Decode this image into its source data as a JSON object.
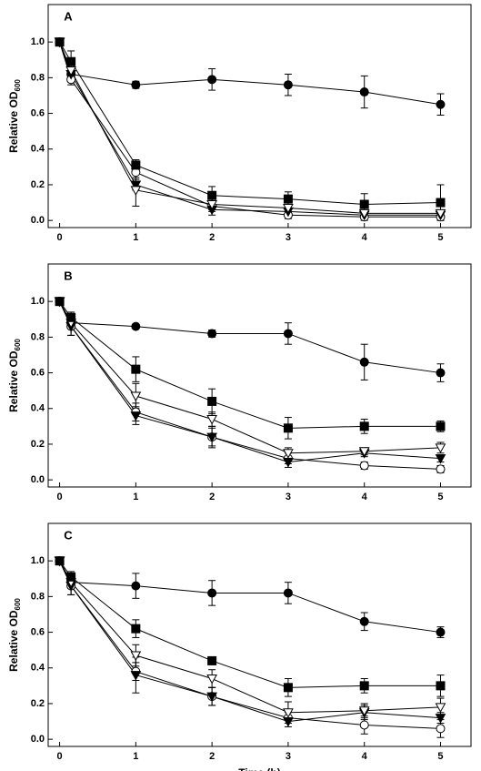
{
  "chart_data": [
    {
      "type": "line",
      "annotation": "A",
      "y_label": "Relative OD",
      "y_label_sub": "600",
      "x": [
        0,
        0.15,
        1,
        2,
        3,
        4,
        5
      ],
      "xlim": [
        -0.15,
        5.4
      ],
      "xticks": [
        0,
        1,
        2,
        3,
        4,
        5
      ],
      "ylim": [
        -0.04,
        1.21
      ],
      "yticks": [
        {
          "value": 0,
          "label": "0.0"
        },
        {
          "value": 0.2,
          "label": "0.2"
        },
        {
          "value": 0.4,
          "label": "0.4"
        },
        {
          "value": 0.6,
          "label": "0.6"
        },
        {
          "value": 0.8,
          "label": "0.8"
        },
        {
          "value": 1,
          "label": "1.0"
        }
      ],
      "series": [
        {
          "marker": "circle",
          "filled": true,
          "color": "#000000",
          "values": [
            1,
            0.82,
            0.76,
            0.79,
            0.76,
            0.72,
            0.65
          ],
          "errors": [
            0,
            0.03,
            0.02,
            0.06,
            0.06,
            0.09,
            0.06
          ]
        },
        {
          "marker": "circle",
          "filled": false,
          "color": "#000000",
          "values": [
            1,
            0.79,
            0.27,
            0.08,
            0.03,
            0.02,
            0.02
          ],
          "errors": [
            0,
            0.03,
            0.03,
            0.03,
            0.02,
            0.02,
            0.02
          ]
        },
        {
          "marker": "triangle",
          "filled": true,
          "color": "#000000",
          "values": [
            1,
            0.82,
            0.2,
            0.06,
            0.05,
            0.03,
            0.03
          ],
          "errors": [
            0,
            0.03,
            0.03,
            0.03,
            0.02,
            0.02,
            0.02
          ]
        },
        {
          "marker": "triangle",
          "filled": false,
          "color": "#000000",
          "values": [
            1,
            0.84,
            0.17,
            0.09,
            0.07,
            0.04,
            0.04
          ],
          "errors": [
            0,
            0.03,
            0.09,
            0.03,
            0.03,
            0.02,
            0.02
          ]
        },
        {
          "marker": "square",
          "filled": true,
          "color": "#000000",
          "values": [
            1,
            0.89,
            0.31,
            0.14,
            0.12,
            0.09,
            0.1
          ],
          "errors": [
            0,
            0.06,
            0.03,
            0.05,
            0.04,
            0.06,
            0.1
          ]
        }
      ]
    },
    {
      "type": "line",
      "annotation": "B",
      "y_label": "Relative OD",
      "y_label_sub": "600",
      "x": [
        0,
        0.15,
        1,
        2,
        3,
        4,
        5
      ],
      "xlim": [
        -0.15,
        5.4
      ],
      "xticks": [
        0,
        1,
        2,
        3,
        4,
        5
      ],
      "ylim": [
        -0.04,
        1.21
      ],
      "yticks": [
        {
          "value": 0,
          "label": "0.0"
        },
        {
          "value": 0.2,
          "label": "0.2"
        },
        {
          "value": 0.4,
          "label": "0.4"
        },
        {
          "value": 0.6,
          "label": "0.6"
        },
        {
          "value": 0.8,
          "label": "0.8"
        },
        {
          "value": 1,
          "label": "1.0"
        }
      ],
      "series": [
        {
          "marker": "circle",
          "filled": true,
          "color": "#000000",
          "values": [
            1,
            0.88,
            0.86,
            0.82,
            0.82,
            0.66,
            0.6
          ],
          "errors": [
            0,
            0.02,
            0.01,
            0.02,
            0.06,
            0.1,
            0.05
          ]
        },
        {
          "marker": "circle",
          "filled": false,
          "color": "#000000",
          "values": [
            1,
            0.86,
            0.38,
            0.24,
            0.12,
            0.08,
            0.06
          ],
          "errors": [
            0,
            0.05,
            0.05,
            0.05,
            0.03,
            0.02,
            0.02
          ]
        },
        {
          "marker": "triangle",
          "filled": true,
          "color": "#000000",
          "values": [
            1,
            0.86,
            0.36,
            0.24,
            0.1,
            0.15,
            0.12
          ],
          "errors": [
            0,
            0.05,
            0.05,
            0.06,
            0.03,
            0.02,
            0.02
          ]
        },
        {
          "marker": "triangle",
          "filled": false,
          "color": "#000000",
          "values": [
            1,
            0.88,
            0.47,
            0.34,
            0.15,
            0.16,
            0.18
          ],
          "errors": [
            0,
            0.03,
            0.07,
            0.04,
            0.03,
            0.02,
            0.03
          ]
        },
        {
          "marker": "square",
          "filled": true,
          "color": "#000000",
          "values": [
            1,
            0.91,
            0.62,
            0.44,
            0.29,
            0.3,
            0.3
          ],
          "errors": [
            0,
            0.03,
            0.07,
            0.07,
            0.06,
            0.04,
            0.03
          ]
        }
      ]
    },
    {
      "type": "line",
      "annotation": "C",
      "y_label": "Relative OD",
      "y_label_sub": "600",
      "x_label": "Time (h)",
      "x": [
        0,
        0.15,
        1,
        2,
        3,
        4,
        5
      ],
      "xlim": [
        -0.15,
        5.4
      ],
      "xticks": [
        0,
        1,
        2,
        3,
        4,
        5
      ],
      "ylim": [
        -0.04,
        1.21
      ],
      "yticks": [
        {
          "value": 0,
          "label": "0.0"
        },
        {
          "value": 0.2,
          "label": "0.2"
        },
        {
          "value": 0.4,
          "label": "0.4"
        },
        {
          "value": 0.6,
          "label": "0.6"
        },
        {
          "value": 0.8,
          "label": "0.8"
        },
        {
          "value": 1,
          "label": "1.0"
        }
      ],
      "series": [
        {
          "marker": "circle",
          "filled": true,
          "color": "#000000",
          "values": [
            1,
            0.88,
            0.86,
            0.82,
            0.82,
            0.66,
            0.6
          ],
          "errors": [
            0,
            0.02,
            0.07,
            0.07,
            0.06,
            0.05,
            0.03
          ]
        },
        {
          "marker": "circle",
          "filled": false,
          "color": "#000000",
          "values": [
            1,
            0.86,
            0.38,
            0.24,
            0.12,
            0.08,
            0.06
          ],
          "errors": [
            0,
            0.05,
            0.05,
            0.05,
            0.03,
            0.05,
            0.05
          ]
        },
        {
          "marker": "triangle",
          "filled": true,
          "color": "#000000",
          "values": [
            1,
            0.86,
            0.36,
            0.24,
            0.1,
            0.15,
            0.12
          ],
          "errors": [
            0,
            0.05,
            0.1,
            0.05,
            0.03,
            0.04,
            0.03
          ]
        },
        {
          "marker": "triangle",
          "filled": false,
          "color": "#000000",
          "values": [
            1,
            0.88,
            0.47,
            0.34,
            0.15,
            0.16,
            0.18
          ],
          "errors": [
            0,
            0.03,
            0.06,
            0.05,
            0.06,
            0.04,
            0.05
          ]
        },
        {
          "marker": "square",
          "filled": true,
          "color": "#000000",
          "values": [
            1,
            0.91,
            0.62,
            0.44,
            0.29,
            0.3,
            0.3
          ],
          "errors": [
            0,
            0.03,
            0.05,
            0.02,
            0.05,
            0.04,
            0.06
          ]
        }
      ]
    }
  ]
}
